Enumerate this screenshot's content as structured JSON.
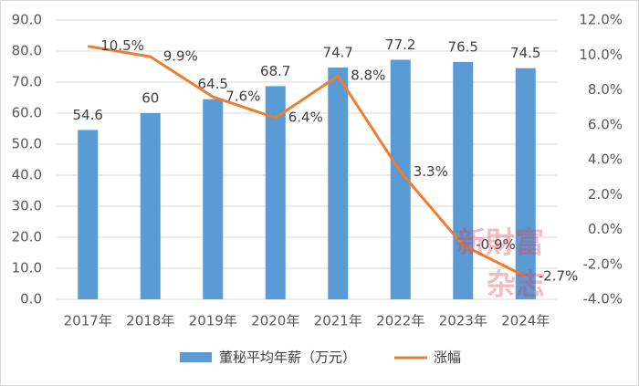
{
  "chart_data": {
    "type": "combo",
    "categories": [
      "2017年",
      "2018年",
      "2019年",
      "2020年",
      "2021年",
      "2022年",
      "2023年",
      "2024年"
    ],
    "series": [
      {
        "name": "董秘平均年薪（万元）",
        "type": "bar",
        "color": "#5b9bd5",
        "values": [
          54.6,
          60,
          64.5,
          68.7,
          74.7,
          77.2,
          76.5,
          74.5
        ]
      },
      {
        "name": "涨幅",
        "type": "line",
        "axis": "y2",
        "color": "#ed7d31",
        "values": [
          10.5,
          9.9,
          7.6,
          6.4,
          8.8,
          3.3,
          -0.9,
          -2.7
        ],
        "value_labels": [
          "10.5%",
          "9.9%",
          "7.6%",
          "6.4%",
          "8.8%",
          "3.3%",
          "-0.9%",
          "-2.7%"
        ]
      }
    ],
    "ylim": [
      0,
      90
    ],
    "yticks": [
      {
        "value": 0,
        "label": "0.0"
      },
      {
        "value": 10,
        "label": "10.0"
      },
      {
        "value": 20,
        "label": "20.0"
      },
      {
        "value": 30,
        "label": "30.0"
      },
      {
        "value": 40,
        "label": "40.0"
      },
      {
        "value": 50,
        "label": "50.0"
      },
      {
        "value": 60,
        "label": "60.0"
      },
      {
        "value": 70,
        "label": "70.0"
      },
      {
        "value": 80,
        "label": "80.0"
      },
      {
        "value": 90,
        "label": "90.0"
      }
    ],
    "y2lim": [
      -4,
      12
    ],
    "y2ticks": [
      {
        "value": -4,
        "label": "-4.0%"
      },
      {
        "value": -2,
        "label": "-2.0%"
      },
      {
        "value": 0,
        "label": "0.0%"
      },
      {
        "value": 2,
        "label": "2.0%"
      },
      {
        "value": 4,
        "label": "4.0%"
      },
      {
        "value": 6,
        "label": "6.0%"
      },
      {
        "value": 8,
        "label": "8.0%"
      },
      {
        "value": 10,
        "label": "10.0%"
      },
      {
        "value": 12,
        "label": "12.0%"
      }
    ],
    "grid": true,
    "legend": "bottom",
    "watermark": [
      "新財富",
      "杂志"
    ]
  }
}
